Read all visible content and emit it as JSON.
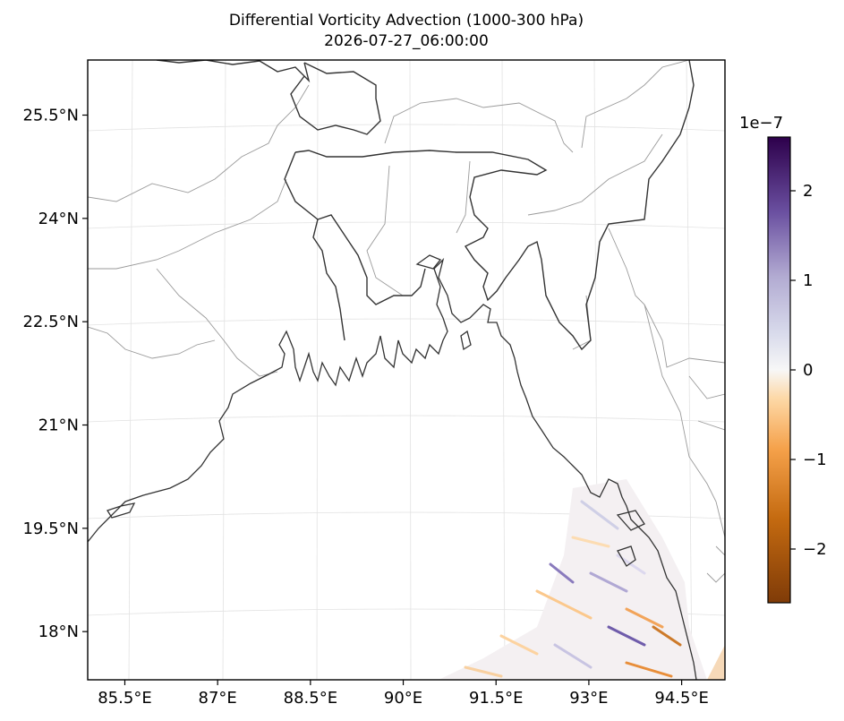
{
  "chart_data": {
    "type": "heatmap",
    "title": "Differential Vorticity Advection (1000-300 hPa)",
    "subtitle": "2026-07-27_06:00:00",
    "xlim": [
      84.9,
      95.2
    ],
    "ylim": [
      17.3,
      26.3
    ],
    "x_ticks": [
      "85.5°E",
      "87°E",
      "88.5°E",
      "90°E",
      "91.5°E",
      "93°E",
      "94.5°E"
    ],
    "x_tick_values": [
      85.5,
      87,
      88.5,
      90,
      91.5,
      93,
      94.5
    ],
    "y_ticks": [
      "25.5°N",
      "24°N",
      "22.5°N",
      "21°N",
      "19.5°N",
      "18°N"
    ],
    "y_tick_values": [
      25.5,
      24,
      22.5,
      21,
      19.5,
      18
    ],
    "grid": true,
    "colorbar": {
      "colormap": "PuOr",
      "exponent_label": "1e−7",
      "range": [
        -2.6,
        2.6
      ],
      "tick_labels": [
        "2",
        "1",
        "0",
        "−1",
        "−2"
      ],
      "tick_values": [
        2,
        1,
        0,
        -1,
        -2
      ],
      "colors": {
        "low": "#7f3b08",
        "mid_low": "#f5a14a",
        "zero": "#f7f7f7",
        "mid_high": "#b2abd2",
        "high": "#2d004b"
      }
    },
    "data_region": "Bay of Bengal off Myanmar coast, approx. 90.5–94.6°E, 17.3–20.1°N",
    "value_range_shown": [
      -2.5,
      2.0
    ]
  }
}
